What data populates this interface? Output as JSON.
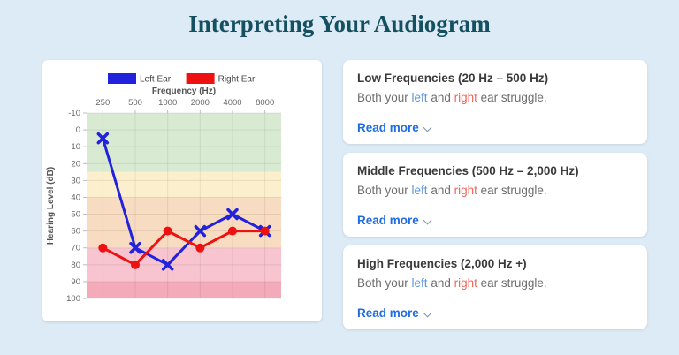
{
  "page": {
    "title": "Interpreting Your Audiogram",
    "background_color": "#ddebf6",
    "title_color": "#14505f"
  },
  "chart_data": {
    "type": "line",
    "x_axis_label": "Frequency (Hz)",
    "y_axis_label": "Hearing Level (dB)",
    "categories": [
      "250",
      "500",
      "1000",
      "2000",
      "4000",
      "8000"
    ],
    "y_ticks": [
      -10,
      0,
      10,
      20,
      30,
      40,
      50,
      60,
      70,
      80,
      90,
      100
    ],
    "y_range": [
      -10,
      100
    ],
    "y_axis_inverted_note": "hearing loss increases downward",
    "grid": true,
    "legend_position": "top",
    "series": [
      {
        "name": "Left Ear",
        "color": "#2222dd",
        "marker": "x",
        "values": [
          5,
          70,
          80,
          60,
          50,
          60
        ]
      },
      {
        "name": "Right Ear",
        "color": "#ee1111",
        "marker": "circle",
        "values": [
          70,
          80,
          60,
          70,
          60,
          60
        ]
      }
    ],
    "bands": [
      {
        "from": -10,
        "to": 25,
        "color": "#d9ead2"
      },
      {
        "from": 25,
        "to": 40,
        "color": "#fcefcd"
      },
      {
        "from": 40,
        "to": 70,
        "color": "#f8dcc1"
      },
      {
        "from": 70,
        "to": 90,
        "color": "#f7c4cf"
      },
      {
        "from": 90,
        "to": 100,
        "color": "#f3abb9"
      }
    ]
  },
  "cards": [
    {
      "title": "Low Frequencies (20 Hz – 500 Hz)",
      "body": {
        "prefix": "Both your ",
        "left": "left",
        "and": " and ",
        "right": "right",
        "suffix": " ear struggle."
      },
      "read_more": "Read more"
    },
    {
      "title": "Middle Frequencies (500 Hz – 2,000 Hz)",
      "body": {
        "prefix": "Both your ",
        "left": "left",
        "and": " and ",
        "right": "right",
        "suffix": " ear struggle."
      },
      "read_more": "Read more"
    },
    {
      "title": "High Frequencies (2,000 Hz +)",
      "body": {
        "prefix": "Both your ",
        "left": "left",
        "and": " and ",
        "right": "right",
        "suffix": " ear struggle."
      },
      "read_more": "Read more"
    }
  ],
  "colors": {
    "left_ear": "#2222dd",
    "right_ear": "#ee1111",
    "left_word": "#5a96dd",
    "right_word": "#f2645a",
    "read_more_blue": "#1f6de0"
  }
}
